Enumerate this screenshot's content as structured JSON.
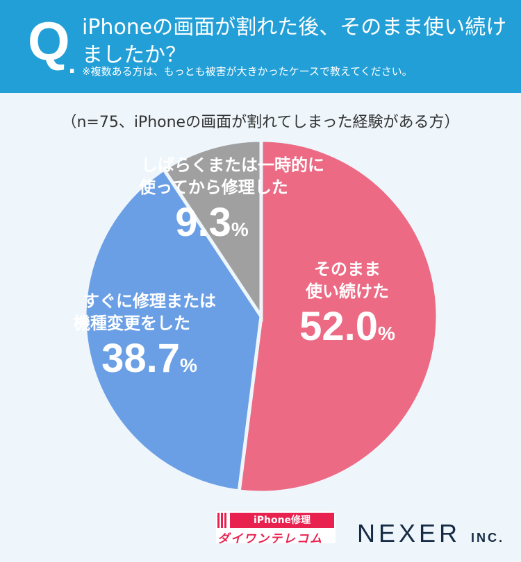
{
  "header": {
    "q": "Q",
    "dot": ".",
    "title": "iPhoneの画面が割れた後、そのまま使い続けましたか？",
    "note": "※複数ある方は、もっとも被害が大きかったケースで教えてください。"
  },
  "subtitle": "（n=75、iPhoneの画面が割れてしまった経験がある方）",
  "chart_data": {
    "type": "pie",
    "categories": [
      "そのまま使い続けた",
      "すぐに修理または機種変更をした",
      "しばらくまたは一時的に使ってから修理した"
    ],
    "values": [
      52.0,
      38.7,
      9.3
    ],
    "unit": "%",
    "colors": [
      "#ec6a84",
      "#6a9fe6",
      "#a0a0a0"
    ],
    "labels": [
      {
        "lines": [
          "そのまま",
          "使い続けた"
        ],
        "value": "52.0"
      },
      {
        "lines": [
          "すぐに修理または",
          "機種変更をした"
        ],
        "value": "38.7"
      },
      {
        "lines": [
          "しばらくまたは一時的に",
          "使ってから修理した"
        ],
        "value": "9.3"
      }
    ],
    "start": "top",
    "direction": "clockwise"
  },
  "logos": {
    "daiwa_top": "iPhone修理",
    "daiwa_bottom": "ダイワンテレコム",
    "nexer": "NEXER",
    "nexer_suffix": "INC."
  }
}
